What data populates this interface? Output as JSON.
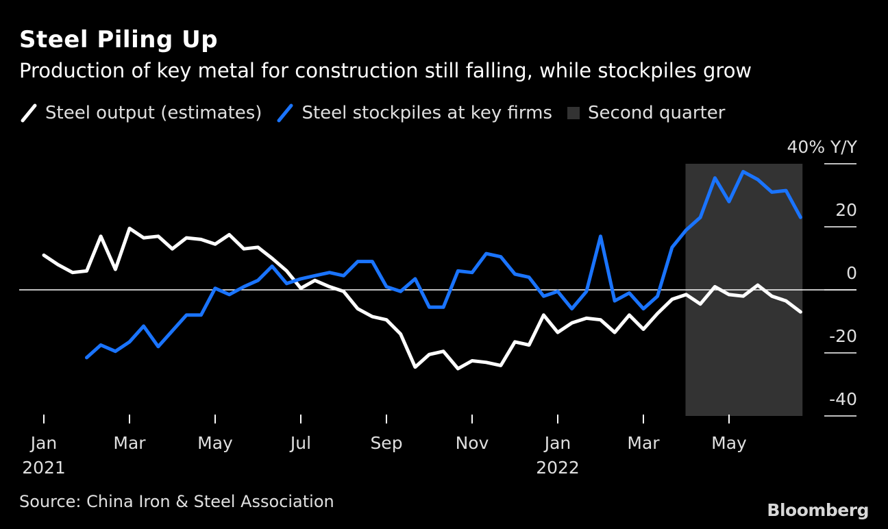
{
  "title": "Steel Piling Up",
  "subtitle": "Production of key metal for construction still falling, while stockpiles grow",
  "legend": {
    "output": "Steel output (estimates)",
    "stockpiles": "Steel stockpiles at key firms",
    "quarter": "Second quarter"
  },
  "source": "Source: China Iron & Steel Association",
  "logo": "Bloomberg",
  "colors": {
    "background": "#000000",
    "output": "#ffffff",
    "stockpiles": "#1a74ff",
    "quarter": "#333333"
  },
  "chart_data": {
    "type": "line",
    "ylabel": "Y/Y",
    "y_unit_label": "40% Y/Y",
    "ylim": [
      -40,
      40
    ],
    "y_ticks": [
      40,
      20,
      0,
      -20,
      -40
    ],
    "y_tick_labels": [
      "40% Y/Y",
      "20",
      "0",
      "-20",
      "-40"
    ],
    "x_ticks": [
      {
        "month": 0,
        "label": "Jan",
        "year": "2021"
      },
      {
        "month": 2,
        "label": "Mar",
        "year": ""
      },
      {
        "month": 4,
        "label": "May",
        "year": ""
      },
      {
        "month": 6,
        "label": "Jul",
        "year": ""
      },
      {
        "month": 8,
        "label": "Sep",
        "year": ""
      },
      {
        "month": 10,
        "label": "Nov",
        "year": ""
      },
      {
        "month": 12,
        "label": "Jan",
        "year": "2022"
      },
      {
        "month": 14,
        "label": "Mar",
        "year": ""
      },
      {
        "month": 16,
        "label": "May",
        "year": ""
      }
    ],
    "shaded_region": {
      "label": "Second quarter",
      "start": 15,
      "end": 17.7
    },
    "series": [
      {
        "name": "Steel output (estimates)",
        "color": "#ffffff",
        "x": [
          0.0,
          0.33,
          0.67,
          1.0,
          1.33,
          1.67,
          2.0,
          2.33,
          2.67,
          3.0,
          3.33,
          3.67,
          4.0,
          4.33,
          4.67,
          5.0,
          5.33,
          5.67,
          6.0,
          6.33,
          6.67,
          7.0,
          7.33,
          7.67,
          8.0,
          8.33,
          8.67,
          9.0,
          9.33,
          9.67,
          10.0,
          10.33,
          10.67,
          11.0,
          11.33,
          11.67,
          12.0,
          12.33,
          12.67,
          13.0,
          13.33,
          13.67,
          14.0,
          14.33,
          14.67,
          15.0,
          15.33,
          15.67,
          16.0,
          16.33,
          16.67,
          17.0,
          17.33,
          17.67
        ],
        "values": [
          11,
          8,
          5.5,
          6,
          17,
          6.5,
          19.5,
          16.5,
          17,
          13,
          16.5,
          16,
          14.5,
          17.5,
          13,
          13.5,
          10,
          6,
          0.5,
          3,
          1,
          -0.5,
          -6,
          -8.5,
          -9.5,
          -14,
          -24.5,
          -20.5,
          -19.5,
          -25,
          -22.5,
          -23,
          -24,
          -16.5,
          -17.5,
          -8,
          -13.5,
          -10.5,
          -9,
          -9.5,
          -13.5,
          -8,
          -12.5,
          -7.5,
          -3,
          -1.5,
          -4.5,
          1,
          -1.5,
          -2,
          1.5,
          -2,
          -3.5,
          -7
        ]
      },
      {
        "name": "Steel stockpiles at key firms",
        "color": "#1a74ff",
        "x": [
          1.0,
          1.33,
          1.67,
          2.0,
          2.33,
          2.67,
          3.0,
          3.33,
          3.67,
          4.0,
          4.33,
          4.67,
          5.0,
          5.33,
          5.67,
          6.0,
          6.33,
          6.67,
          7.0,
          7.33,
          7.67,
          8.0,
          8.33,
          8.67,
          9.0,
          9.33,
          9.67,
          10.0,
          10.33,
          10.67,
          11.0,
          11.33,
          11.67,
          12.0,
          12.33,
          12.67,
          13.0,
          13.33,
          13.67,
          14.0,
          14.33,
          14.67,
          15.0,
          15.33,
          15.67,
          16.0,
          16.33,
          16.67,
          17.0,
          17.33,
          17.67
        ],
        "values": [
          -21.5,
          -17.5,
          -19.5,
          -16.5,
          -11.5,
          -18,
          -13,
          -8,
          -8,
          0.5,
          -1.5,
          1,
          3,
          7.5,
          2,
          3.5,
          4.5,
          5.5,
          4.5,
          9,
          9,
          1,
          -0.5,
          3.5,
          -5.5,
          -5.5,
          6,
          5.5,
          11.5,
          10.5,
          5,
          4,
          -2,
          -0.5,
          -6,
          -0.5,
          17,
          -3.5,
          -1,
          -6,
          -2,
          13.5,
          19,
          23,
          35.5,
          28,
          37.5,
          35,
          31,
          31.5,
          23
        ]
      }
    ]
  }
}
